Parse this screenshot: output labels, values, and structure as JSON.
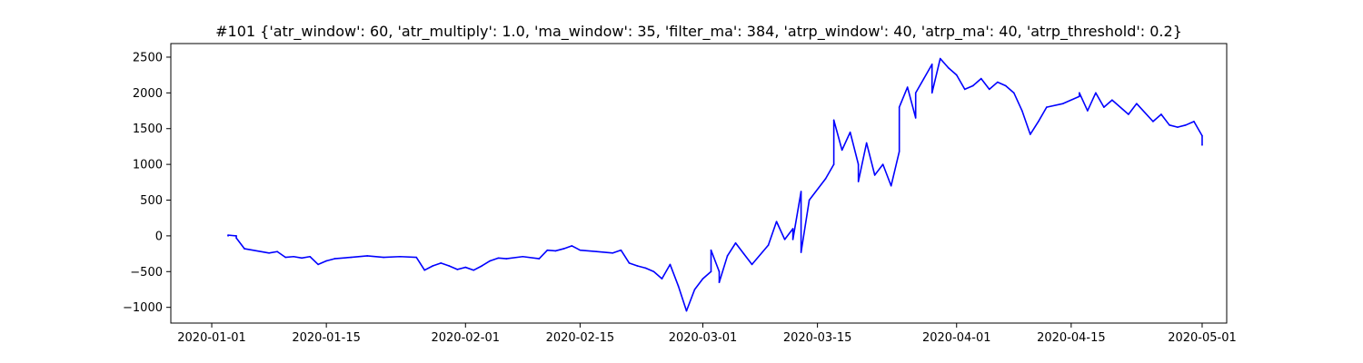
{
  "chart_data": {
    "type": "line",
    "title": "#101 {'atr_window': 60, 'atr_multiply': 1.0, 'ma_window': 35, 'filter_ma': 384, 'atrp_window': 40, 'atrp_ma': 40, 'atrp_threshold': 0.2}",
    "xlabel": "",
    "ylabel": "",
    "x_type": "date",
    "xlim": [
      "2019-12-27",
      "2020-05-04"
    ],
    "ylim": [
      -1220,
      2690
    ],
    "grid": false,
    "legend": "none",
    "line_color": "#0000ff",
    "x_ticks": [
      {
        "date": "2020-01-01",
        "label": "2020-01-01"
      },
      {
        "date": "2020-01-15",
        "label": "2020-01-15"
      },
      {
        "date": "2020-02-01",
        "label": "2020-02-01"
      },
      {
        "date": "2020-02-15",
        "label": "2020-02-15"
      },
      {
        "date": "2020-03-01",
        "label": "2020-03-01"
      },
      {
        "date": "2020-03-15",
        "label": "2020-03-15"
      },
      {
        "date": "2020-04-01",
        "label": "2020-04-01"
      },
      {
        "date": "2020-04-15",
        "label": "2020-04-15"
      },
      {
        "date": "2020-05-01",
        "label": "2020-05-01"
      }
    ],
    "y_ticks": [
      {
        "value": 2500,
        "label": "2500"
      },
      {
        "value": 2000,
        "label": "2000"
      },
      {
        "value": 1500,
        "label": "1500"
      },
      {
        "value": 1000,
        "label": "1000"
      },
      {
        "value": 500,
        "label": "500"
      },
      {
        "value": 0,
        "label": "0"
      },
      {
        "value": -500,
        "label": "−500"
      },
      {
        "value": -1000,
        "label": "−1000"
      }
    ],
    "series": [
      {
        "color": "#0000ff",
        "points": [
          [
            "2020-01-03",
            0
          ],
          [
            "2020-01-03",
            10
          ],
          [
            "2020-01-04",
            0
          ],
          [
            "2020-01-04",
            -30
          ],
          [
            "2020-01-05",
            -180
          ],
          [
            "2020-01-08",
            -240
          ],
          [
            "2020-01-09",
            -220
          ],
          [
            "2020-01-10",
            -300
          ],
          [
            "2020-01-11",
            -290
          ],
          [
            "2020-01-12",
            -310
          ],
          [
            "2020-01-13",
            -290
          ],
          [
            "2020-01-14",
            -400
          ],
          [
            "2020-01-15",
            -350
          ],
          [
            "2020-01-16",
            -320
          ],
          [
            "2020-01-18",
            -300
          ],
          [
            "2020-01-20",
            -280
          ],
          [
            "2020-01-22",
            -300
          ],
          [
            "2020-01-24",
            -290
          ],
          [
            "2020-01-26",
            -300
          ],
          [
            "2020-01-27",
            -480
          ],
          [
            "2020-01-28",
            -420
          ],
          [
            "2020-01-29",
            -380
          ],
          [
            "2020-01-30",
            -420
          ],
          [
            "2020-01-31",
            -470
          ],
          [
            "2020-02-01",
            -440
          ],
          [
            "2020-02-02",
            -480
          ],
          [
            "2020-02-03",
            -420
          ],
          [
            "2020-02-04",
            -350
          ],
          [
            "2020-02-05",
            -310
          ],
          [
            "2020-02-06",
            -320
          ],
          [
            "2020-02-08",
            -290
          ],
          [
            "2020-02-10",
            -320
          ],
          [
            "2020-02-11",
            -200
          ],
          [
            "2020-02-12",
            -210
          ],
          [
            "2020-02-13",
            -180
          ],
          [
            "2020-02-14",
            -140
          ],
          [
            "2020-02-15",
            -200
          ],
          [
            "2020-02-17",
            -220
          ],
          [
            "2020-02-19",
            -240
          ],
          [
            "2020-02-20",
            -200
          ],
          [
            "2020-02-21",
            -380
          ],
          [
            "2020-02-22",
            -420
          ],
          [
            "2020-02-23",
            -450
          ],
          [
            "2020-02-24",
            -500
          ],
          [
            "2020-02-25",
            -600
          ],
          [
            "2020-02-26",
            -400
          ],
          [
            "2020-02-27",
            -700
          ],
          [
            "2020-02-28",
            -1050
          ],
          [
            "2020-02-29",
            -750
          ],
          [
            "2020-03-01",
            -600
          ],
          [
            "2020-03-02",
            -500
          ],
          [
            "2020-03-02",
            -200
          ],
          [
            "2020-03-03",
            -500
          ],
          [
            "2020-03-03",
            -650
          ],
          [
            "2020-03-04",
            -280
          ],
          [
            "2020-03-05",
            -100
          ],
          [
            "2020-03-06",
            -250
          ],
          [
            "2020-03-07",
            -400
          ],
          [
            "2020-03-09",
            -130
          ],
          [
            "2020-03-10",
            200
          ],
          [
            "2020-03-11",
            -50
          ],
          [
            "2020-03-12",
            100
          ],
          [
            "2020-03-12",
            -50
          ],
          [
            "2020-03-13",
            620
          ],
          [
            "2020-03-13",
            -230
          ],
          [
            "2020-03-14",
            500
          ],
          [
            "2020-03-16",
            800
          ],
          [
            "2020-03-17",
            1000
          ],
          [
            "2020-03-17",
            1620
          ],
          [
            "2020-03-18",
            1200
          ],
          [
            "2020-03-19",
            1450
          ],
          [
            "2020-03-20",
            1000
          ],
          [
            "2020-03-20",
            760
          ],
          [
            "2020-03-21",
            1300
          ],
          [
            "2020-03-22",
            850
          ],
          [
            "2020-03-23",
            1000
          ],
          [
            "2020-03-24",
            700
          ],
          [
            "2020-03-25",
            1180
          ],
          [
            "2020-03-25",
            1800
          ],
          [
            "2020-03-26",
            2080
          ],
          [
            "2020-03-27",
            1650
          ],
          [
            "2020-03-27",
            2000
          ],
          [
            "2020-03-28",
            2200
          ],
          [
            "2020-03-29",
            2400
          ],
          [
            "2020-03-29",
            2000
          ],
          [
            "2020-03-30",
            2480
          ],
          [
            "2020-03-31",
            2350
          ],
          [
            "2020-04-01",
            2250
          ],
          [
            "2020-04-02",
            2050
          ],
          [
            "2020-04-03",
            2100
          ],
          [
            "2020-04-04",
            2200
          ],
          [
            "2020-04-05",
            2050
          ],
          [
            "2020-04-06",
            2150
          ],
          [
            "2020-04-07",
            2100
          ],
          [
            "2020-04-08",
            2000
          ],
          [
            "2020-04-09",
            1750
          ],
          [
            "2020-04-10",
            1420
          ],
          [
            "2020-04-11",
            1600
          ],
          [
            "2020-04-12",
            1800
          ],
          [
            "2020-04-14",
            1850
          ],
          [
            "2020-04-16",
            1950
          ],
          [
            "2020-04-16",
            2000
          ],
          [
            "2020-04-17",
            1750
          ],
          [
            "2020-04-18",
            2000
          ],
          [
            "2020-04-19",
            1800
          ],
          [
            "2020-04-20",
            1900
          ],
          [
            "2020-04-22",
            1700
          ],
          [
            "2020-04-23",
            1850
          ],
          [
            "2020-04-25",
            1600
          ],
          [
            "2020-04-26",
            1700
          ],
          [
            "2020-04-27",
            1550
          ],
          [
            "2020-04-28",
            1520
          ],
          [
            "2020-04-29",
            1550
          ],
          [
            "2020-04-30",
            1600
          ],
          [
            "2020-05-01",
            1400
          ],
          [
            "2020-05-01",
            1270
          ]
        ]
      }
    ]
  }
}
